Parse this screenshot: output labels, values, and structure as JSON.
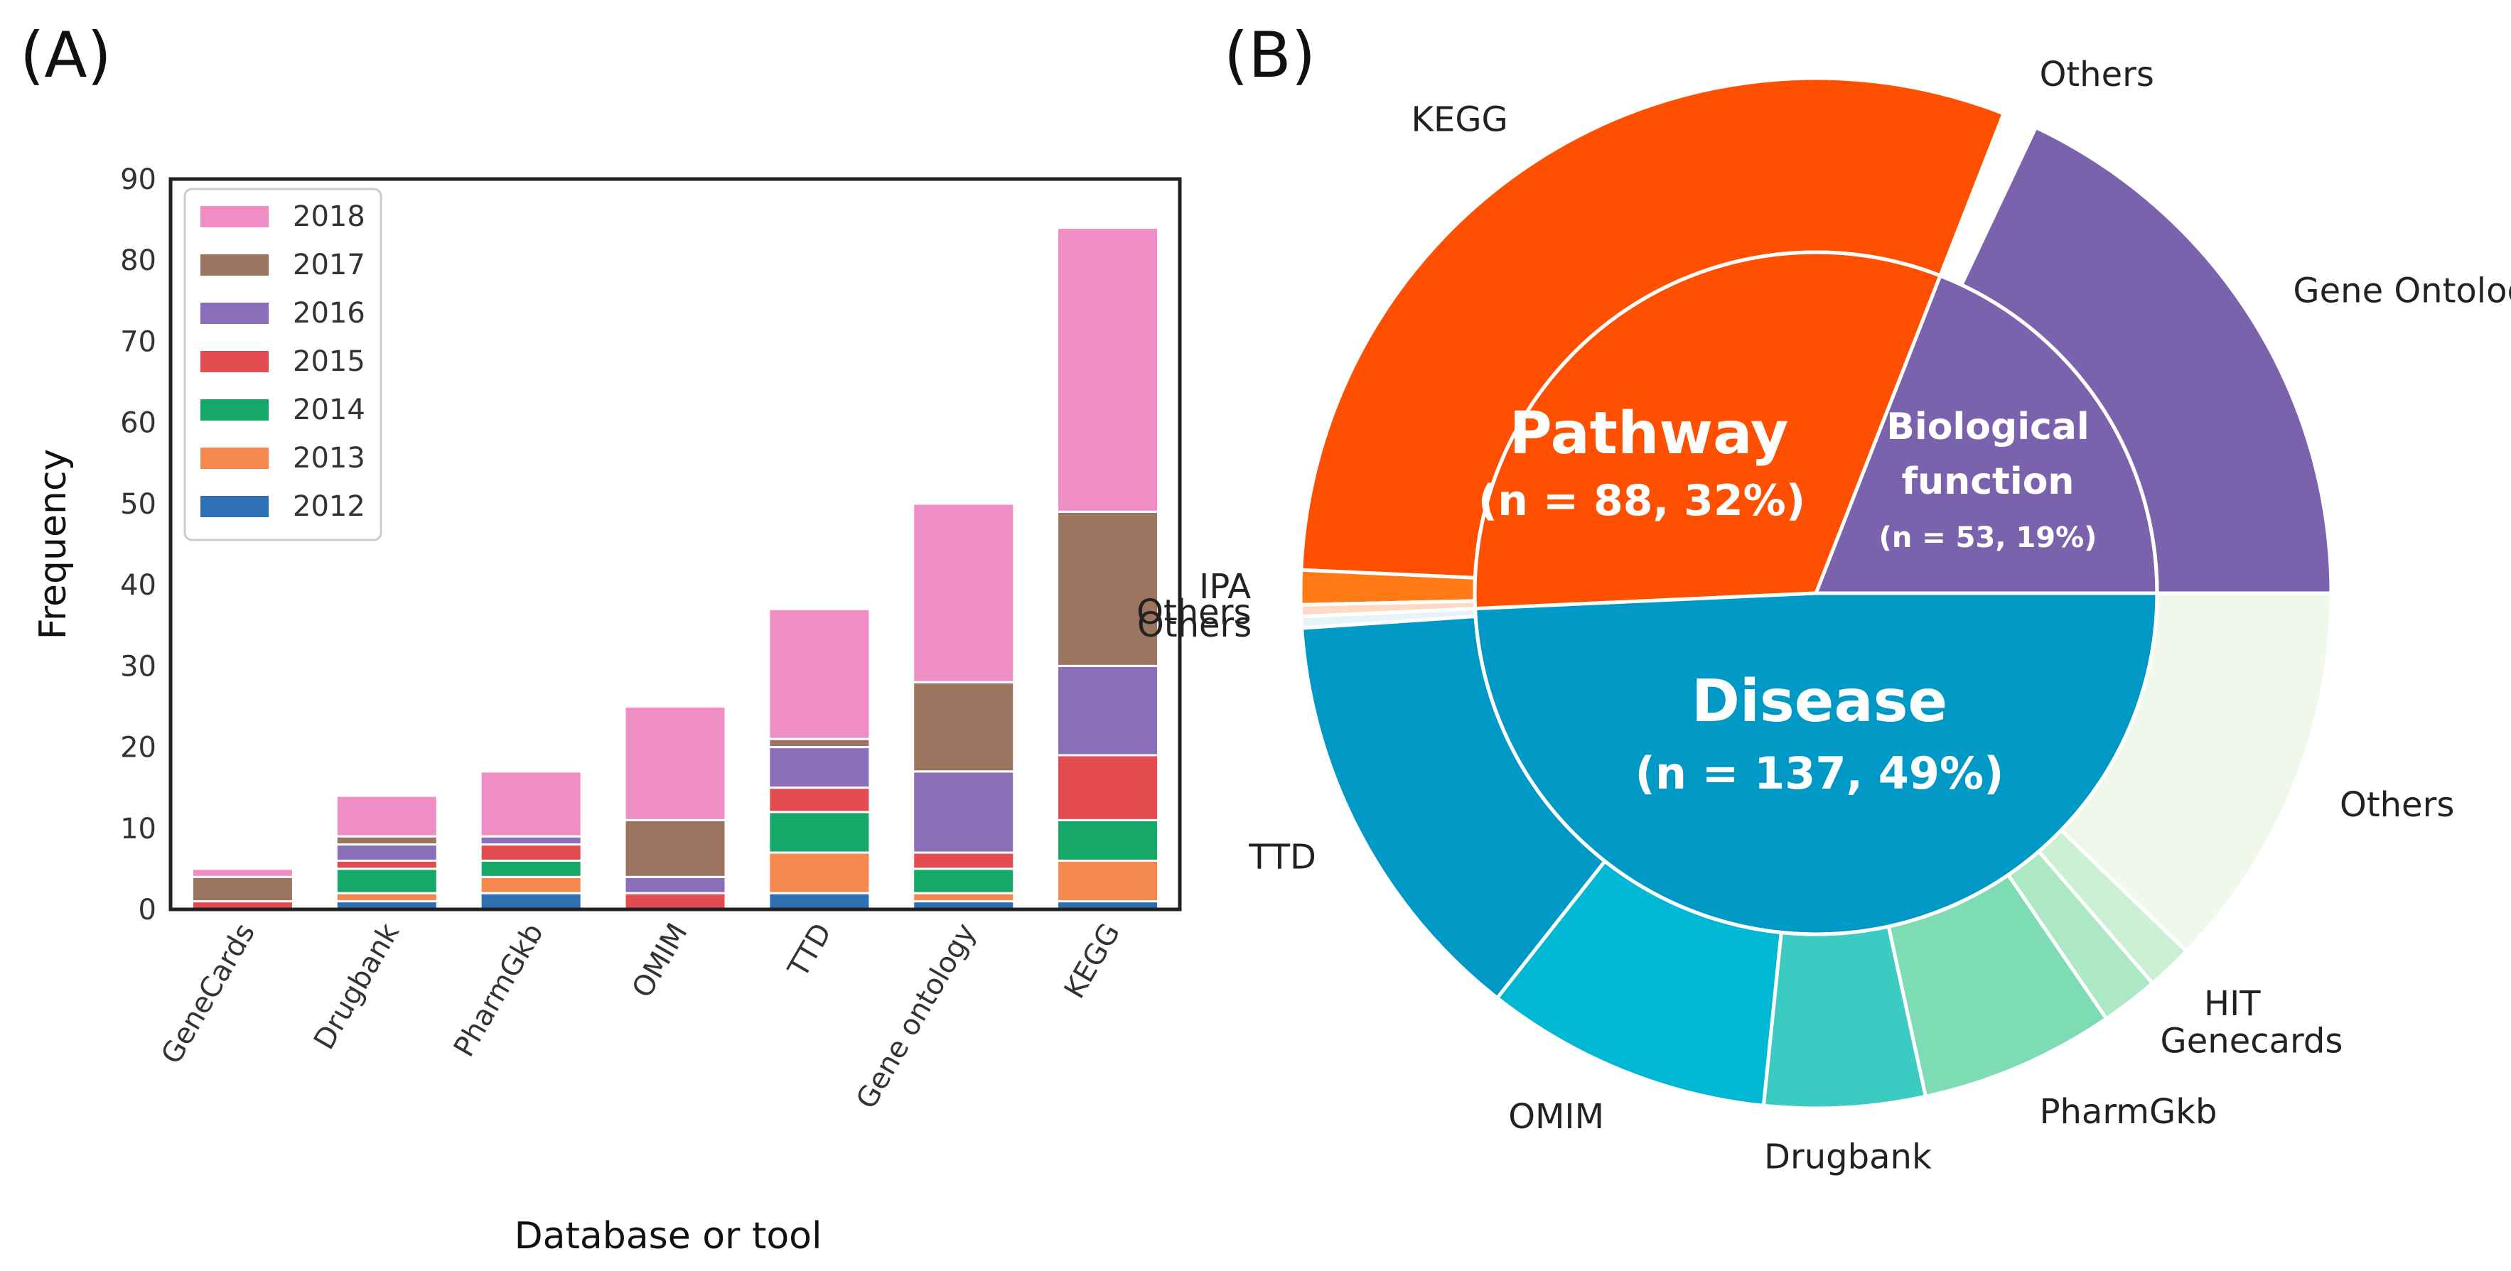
{
  "panels": {
    "a": "(A)",
    "b": "(B)"
  },
  "colors": {
    "2012": "#2f6fb3",
    "2013": "#f5884f",
    "2014": "#16a868",
    "2015": "#e24b50",
    "2016": "#8a6fb8",
    "2017": "#9b7560",
    "2018": "#ef8ec4",
    "pathway": "#fe5000",
    "bio": "#7b62ad",
    "disease": "#0099c6"
  },
  "chart_data": [
    {
      "type": "bar",
      "stacked": true,
      "title": "",
      "xlabel": "Database or tool",
      "ylabel": "Frequency",
      "ylim": [
        0,
        90
      ],
      "yticks": [
        0,
        10,
        20,
        30,
        40,
        50,
        60,
        70,
        80,
        90
      ],
      "categories": [
        "GeneCards",
        "Drugbank",
        "PharmGkb",
        "OMIM",
        "TTD",
        "Gene ontology",
        "KEGG"
      ],
      "legend": {
        "placement": "top-left",
        "order": [
          "2018",
          "2017",
          "2016",
          "2015",
          "2014",
          "2013",
          "2012"
        ]
      },
      "series": [
        {
          "name": "2012",
          "values": [
            0,
            1,
            2,
            0,
            2,
            1,
            1
          ]
        },
        {
          "name": "2013",
          "values": [
            0,
            1,
            2,
            0,
            5,
            1,
            5
          ]
        },
        {
          "name": "2014",
          "values": [
            0,
            3,
            2,
            0,
            5,
            3,
            5
          ]
        },
        {
          "name": "2015",
          "values": [
            1,
            1,
            2,
            2,
            3,
            2,
            8
          ]
        },
        {
          "name": "2016",
          "values": [
            0,
            2,
            1,
            2,
            5,
            10,
            11
          ]
        },
        {
          "name": "2017",
          "values": [
            3,
            1,
            0,
            7,
            1,
            11,
            19
          ]
        },
        {
          "name": "2018",
          "values": [
            1,
            5,
            8,
            14,
            16,
            22,
            35
          ]
        }
      ]
    },
    {
      "type": "pie",
      "subtype": "sunburst",
      "title": "",
      "inner": [
        {
          "name": "Pathway",
          "n": 88,
          "pct": "32%",
          "count_text": "(n = 88, 32%)",
          "color_key": "pathway"
        },
        {
          "name": "Disease",
          "n": 137,
          "pct": "49%",
          "count_text": "(n = 137, 49%)",
          "color_key": "disease"
        },
        {
          "name": "Biological function",
          "line1": "Biological",
          "line2": "function",
          "n": 53,
          "pct": "19%",
          "count_text": "(n = 53, 19%)",
          "color_key": "bio"
        }
      ],
      "outer": [
        {
          "label": "KEGG",
          "parent": "Pathway",
          "value": 84,
          "color": "#fe5000"
        },
        {
          "label": "IPA",
          "parent": "Pathway",
          "value": 3,
          "color": "#ff7a14"
        },
        {
          "label": "Others",
          "parent": "Pathway",
          "value": 1,
          "color": "#ffd9c4"
        },
        {
          "label": "Others",
          "parent": "Disease",
          "value": 1,
          "color": "#e6f4fa"
        },
        {
          "label": "TTD",
          "parent": "Disease",
          "value": 37,
          "color": "#0099c6"
        },
        {
          "label": "OMIM",
          "parent": "Disease",
          "value": 25,
          "color": "#00b8d4"
        },
        {
          "label": "Drugbank",
          "parent": "Disease",
          "value": 14,
          "color": "#3ccbc2"
        },
        {
          "label": "PharmGkb",
          "parent": "Disease",
          "value": 17,
          "color": "#7ddcb4"
        },
        {
          "label": "Genecards",
          "parent": "Disease",
          "value": 5,
          "color": "#ade8c4"
        },
        {
          "label": "HIT",
          "parent": "Disease",
          "value": 4,
          "color": "#cbf0d3"
        },
        {
          "label": "Others",
          "parent": "Disease",
          "value": 34,
          "color": "#f0f8ec"
        },
        {
          "label": "Gene Ontology",
          "parent": "Biological function",
          "value": 50,
          "color": "#7b62ad"
        },
        {
          "label": "Others",
          "parent": "Biological function",
          "value": 3,
          "color": "#ffffff"
        }
      ]
    }
  ]
}
